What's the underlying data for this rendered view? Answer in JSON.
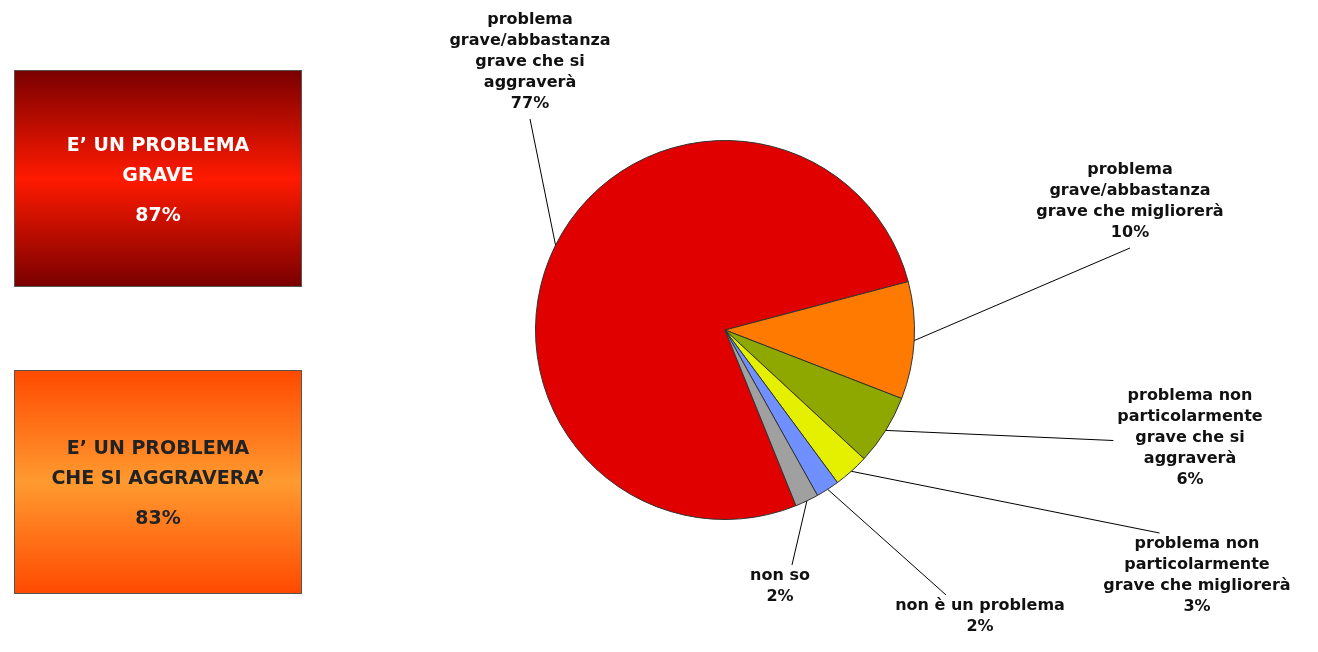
{
  "chart_data": {
    "type": "pie",
    "categories": [
      "problema grave/abbastanza grave che si aggraverà",
      "problema grave/abbastanza grave che migliorerà",
      "problema non particolarmente grave che si aggraverà",
      "problema non particolarmente grave che migliorerà",
      "non è un problema",
      "non so"
    ],
    "values": [
      77,
      10,
      6,
      3,
      2,
      2
    ],
    "colors": [
      "#e00000",
      "#ff7a00",
      "#8fa800",
      "#e4f000",
      "#7090ff",
      "#a0a0a0"
    ],
    "value_labels": [
      "77%",
      "10%",
      "6%",
      "3%",
      "2%",
      "2%"
    ],
    "legend": false,
    "annotations": [
      "E’ UN PROBLEMA GRAVE 87%",
      "E’ UN PROBLEMA CHE SI AGGRAVERA’ 83%"
    ]
  }
}
